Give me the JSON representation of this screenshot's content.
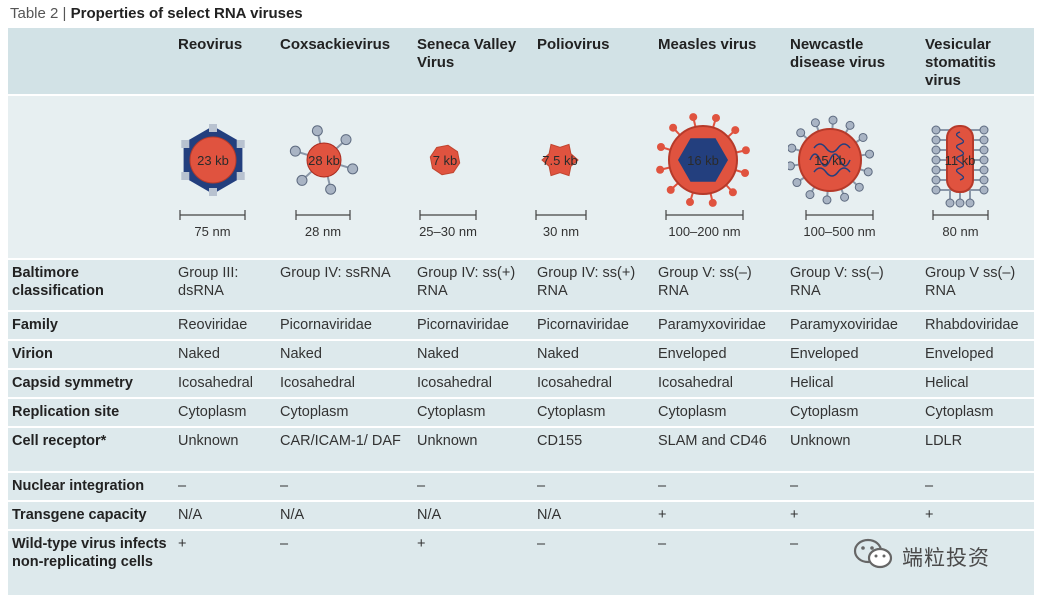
{
  "title": {
    "label": "Table 2 |",
    "text": "Properties of select RNA viruses"
  },
  "table": {
    "columns": [
      "Reovirus",
      "Coxsackievirus",
      "Seneca Valley Virus",
      "Poliovirus",
      "Measles virus",
      "Newcastle disease virus",
      "Vesicular stomatitis virus"
    ],
    "illustrations": [
      {
        "genome": "23 kb",
        "size": "75 nm"
      },
      {
        "genome": "28 kb",
        "size": "28 nm"
      },
      {
        "genome": "7 kb",
        "size": "25–30 nm"
      },
      {
        "genome": "7.5 kb",
        "size": "30 nm"
      },
      {
        "genome": "16 kb",
        "size": "100–200 nm"
      },
      {
        "genome": "15 kb",
        "size": "100–500 nm"
      },
      {
        "genome": "11 kb",
        "size": "80 nm"
      }
    ],
    "rows": [
      [
        "Baltimore classification",
        "Group III: dsRNA",
        "Group IV: ssRNA",
        "Group IV: ss(+) RNA",
        "Group IV: ss(+) RNA",
        "Group V: ss(–) RNA",
        "Group V: ss(–) RNA",
        "Group V ss(–) RNA"
      ],
      [
        "Family",
        "Reoviridae",
        "Picornaviridae",
        "Picornaviridae",
        "Picornaviridae",
        "Paramyxoviridae",
        "Paramyxoviridae",
        "Rhabdoviridae"
      ],
      [
        "Virion",
        "Naked",
        "Naked",
        "Naked",
        "Naked",
        "Enveloped",
        "Enveloped",
        "Enveloped"
      ],
      [
        "Capsid symmetry",
        "Icosahedral",
        "Icosahedral",
        "Icosahedral",
        "Icosahedral",
        "Icosahedral",
        "Helical",
        "Helical"
      ],
      [
        "Replication site",
        "Cytoplasm",
        "Cytoplasm",
        "Cytoplasm",
        "Cytoplasm",
        "Cytoplasm",
        "Cytoplasm",
        "Cytoplasm"
      ],
      [
        "Cell receptor*",
        "Unknown",
        "CAR/ICAM-1/ DAF",
        "Unknown",
        "CD155",
        "SLAM and CD46",
        "Unknown",
        "LDLR"
      ],
      [
        "Nuclear integration",
        "–",
        "–",
        "–",
        "–",
        "–",
        "–",
        "–"
      ],
      [
        "Transgene capacity",
        "N/A",
        "N/A",
        "N/A",
        "N/A",
        "+",
        "+",
        "+"
      ],
      [
        "Wild-type virus infects non-replicating cells",
        "+",
        "–",
        "+",
        "–",
        "–",
        "–",
        ""
      ]
    ]
  },
  "watermark": "端粒投资"
}
